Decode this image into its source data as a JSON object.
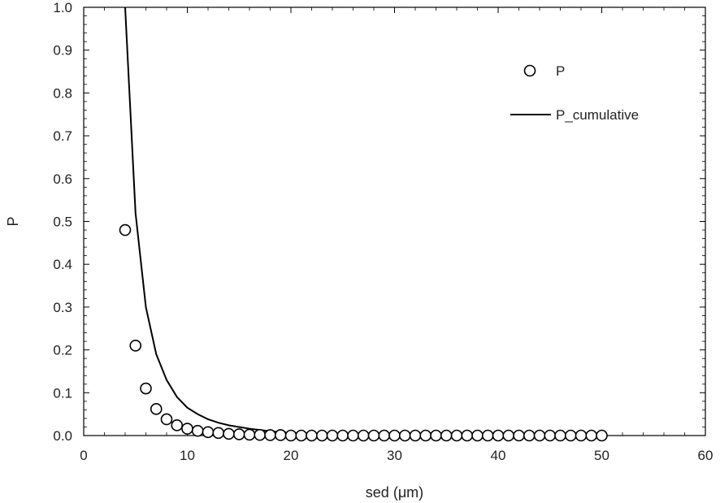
{
  "chart_data": {
    "type": "scatter",
    "xlabel": "sed (μm)",
    "ylabel": "P",
    "xlim": [
      0,
      60
    ],
    "ylim": [
      0,
      1.0
    ],
    "xticks": [
      "0",
      "10",
      "20",
      "30",
      "40",
      "50",
      "60"
    ],
    "yticks": [
      "0.0",
      "0.1",
      "0.2",
      "0.3",
      "0.4",
      "0.5",
      "0.6",
      "0.7",
      "0.8",
      "0.9",
      "1.0"
    ],
    "grid": false,
    "legend_position": "top-right",
    "series": [
      {
        "name": "P",
        "kind": "scatter",
        "marker": "open-circle",
        "x": [
          4,
          5,
          6,
          7,
          8,
          9,
          10,
          11,
          12,
          13,
          14,
          15,
          16,
          17,
          18,
          19,
          20,
          21,
          22,
          23,
          24,
          25,
          26,
          27,
          28,
          29,
          30,
          31,
          32,
          33,
          34,
          35,
          36,
          37,
          38,
          39,
          40,
          41,
          42,
          43,
          44,
          45,
          46,
          47,
          48,
          49,
          50
        ],
        "y": [
          0.48,
          0.21,
          0.11,
          0.062,
          0.038,
          0.024,
          0.016,
          0.011,
          0.008,
          0.006,
          0.004,
          0.003,
          0.002,
          0.0015,
          0.001,
          0.001,
          0,
          0,
          0,
          0,
          0,
          0,
          0,
          0,
          0,
          0,
          0,
          0,
          0,
          0,
          0,
          0,
          0,
          0,
          0,
          0,
          0,
          0,
          0,
          0,
          0,
          0,
          0,
          0,
          0,
          0,
          0
        ]
      },
      {
        "name": "P_cumulative",
        "kind": "line",
        "color": "#000000",
        "x": [
          4,
          5,
          6,
          7,
          8,
          9,
          10,
          11,
          12,
          13,
          14,
          15,
          16,
          17,
          18,
          19,
          20,
          21,
          22,
          23,
          24,
          25,
          26,
          27,
          28,
          29,
          30,
          31,
          32,
          33,
          34,
          35,
          36,
          37,
          38,
          39,
          40,
          41,
          42,
          43,
          44,
          45,
          46,
          47,
          48,
          49,
          50
        ],
        "y": [
          1.0,
          0.52,
          0.3,
          0.19,
          0.13,
          0.09,
          0.065,
          0.05,
          0.038,
          0.03,
          0.024,
          0.02,
          0.016,
          0.013,
          0.01,
          0.008,
          0.006,
          0.005,
          0.004,
          0.003,
          0.003,
          0.002,
          0.002,
          0.0015,
          0.001,
          0.001,
          0,
          0,
          0,
          0,
          0,
          0,
          0,
          0,
          0,
          0,
          0,
          0,
          0,
          0,
          0,
          0,
          0,
          0,
          0,
          0,
          0
        ]
      }
    ]
  }
}
